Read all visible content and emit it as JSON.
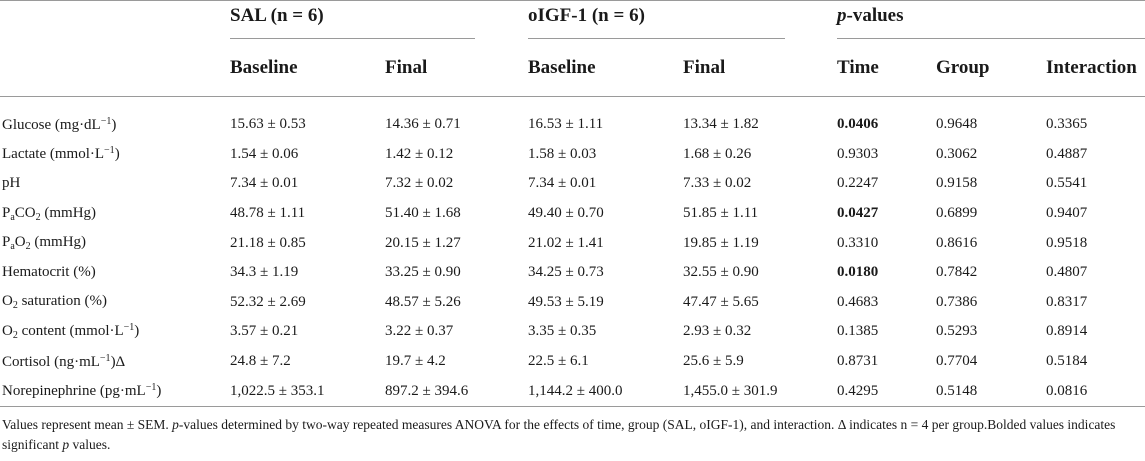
{
  "header": {
    "groups": {
      "sal": "SAL (n = 6)",
      "oigf": "oIGF-1 (n = 6)",
      "p": "p",
      "p_suffix": "-values"
    },
    "columns": [
      "Baseline",
      "Final",
      "Baseline",
      "Final",
      "Time",
      "Group",
      "Interaction"
    ]
  },
  "rows": [
    {
      "label": "Glucose (mg·dL",
      "sup": "−1",
      "suffix": ")",
      "sal_base": "15.63 ± 0.53",
      "sal_final": "14.36 ± 0.71",
      "igf_base": "16.53 ± 1.11",
      "igf_final": "13.34 ± 1.82",
      "time": "0.0406",
      "time_bold": true,
      "group": "0.9648",
      "interaction": "0.3365"
    },
    {
      "label": "Lactate (mmol·L",
      "sup": "−1",
      "suffix": ")",
      "sal_base": "1.54 ± 0.06",
      "sal_final": "1.42 ± 0.12",
      "igf_base": "1.58 ± 0.03",
      "igf_final": "1.68 ± 0.26",
      "time": "0.9303",
      "time_bold": false,
      "group": "0.3062",
      "interaction": "0.4887"
    },
    {
      "label": "pH",
      "sal_base": "7.34 ± 0.01",
      "sal_final": "7.32 ± 0.02",
      "igf_base": "7.34 ± 0.01",
      "igf_final": "7.33 ± 0.02",
      "time": "0.2247",
      "time_bold": false,
      "group": "0.9158",
      "interaction": "0.5541"
    },
    {
      "label": "P",
      "sub": "a",
      "label2": "CO",
      "sub2": "2",
      "suffix": " (mmHg)",
      "sal_base": "48.78 ± 1.11",
      "sal_final": "51.40 ± 1.68",
      "igf_base": "49.40 ± 0.70",
      "igf_final": "51.85 ± 1.11",
      "time": "0.0427",
      "time_bold": true,
      "group": "0.6899",
      "interaction": "0.9407"
    },
    {
      "label": "P",
      "sub": "a",
      "label2": "O",
      "sub2": "2",
      "suffix": " (mmHg)",
      "sal_base": "21.18 ± 0.85",
      "sal_final": "20.15 ± 1.27",
      "igf_base": "21.02 ± 1.41",
      "igf_final": "19.85 ± 1.19",
      "time": "0.3310",
      "time_bold": false,
      "group": "0.8616",
      "interaction": "0.9518"
    },
    {
      "label": "Hematocrit (%)",
      "sal_base": "34.3 ± 1.19",
      "sal_final": "33.25 ± 0.90",
      "igf_base": "34.25 ± 0.73",
      "igf_final": "32.55 ± 0.90",
      "time": "0.0180",
      "time_bold": true,
      "group": "0.7842",
      "interaction": "0.4807"
    },
    {
      "label": "O",
      "sub": "2",
      "suffix": " saturation (%)",
      "sal_base": "52.32 ± 2.69",
      "sal_final": "48.57 ± 5.26",
      "igf_base": "49.53 ± 5.19",
      "igf_final": "47.47 ± 5.65",
      "time": "0.4683",
      "time_bold": false,
      "group": "0.7386",
      "interaction": "0.8317"
    },
    {
      "label": "O",
      "sub": "2",
      "label2": " content (mmol·L",
      "sup": "−1",
      "suffix": ")",
      "sal_base": "3.57 ± 0.21",
      "sal_final": "3.22 ± 0.37",
      "igf_base": "3.35 ± 0.35",
      "igf_final": "2.93 ± 0.32",
      "time": "0.1385",
      "time_bold": false,
      "group": "0.5293",
      "interaction": "0.8914"
    },
    {
      "label": "Cortisol (ng·mL",
      "sup": "−1",
      "suffix": ")Δ",
      "sal_base": "24.8 ± 7.2",
      "sal_final": "19.7 ± 4.2",
      "igf_base": "22.5 ± 6.1",
      "igf_final": "25.6 ± 5.9",
      "time": "0.8731",
      "time_bold": false,
      "group": "0.7704",
      "interaction": "0.5184"
    },
    {
      "label": "Norepinephrine (pg·mL",
      "sup": "−1",
      "suffix": ")",
      "sal_base": "1,022.5 ± 353.1",
      "sal_final": "897.2 ± 394.6",
      "igf_base": "1,144.2 ± 400.0",
      "igf_final": "1,455.0 ± 301.9",
      "time": "0.4295",
      "time_bold": false,
      "group": "0.5148",
      "interaction": "0.0816"
    }
  ],
  "footnote": {
    "part1": "Values represent mean ± SEM. ",
    "p_italic": "p",
    "part2": "-values determined by two-way repeated measures ANOVA for the effects of time, group (SAL, oIGF-1), and interaction. Δ indicates n = 4 per group.Bolded values indicates significant ",
    "p_italic2": "p",
    "part3": " values."
  }
}
